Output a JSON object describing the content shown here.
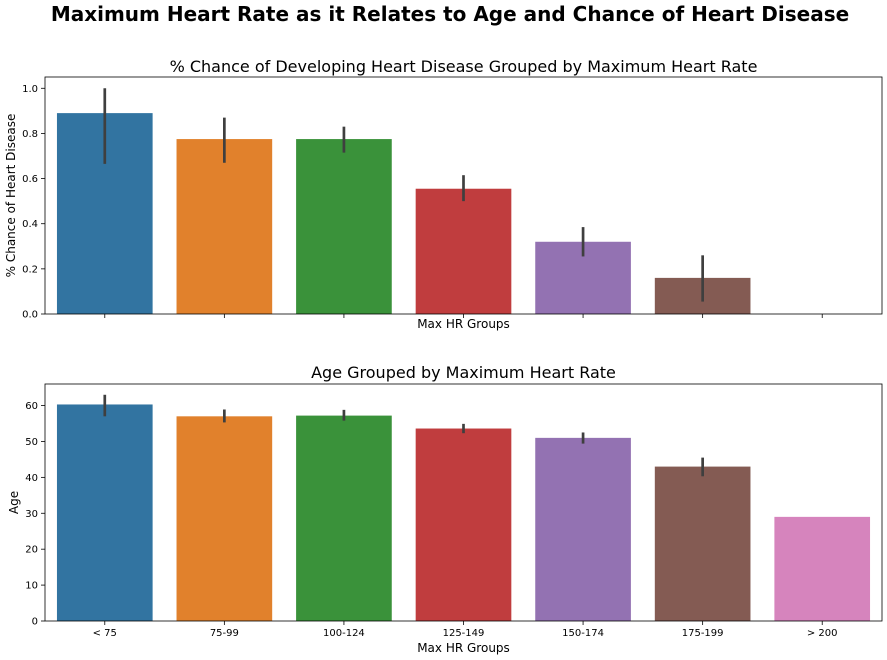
{
  "suptitle": "Maximum Heart Rate as it Relates to Age and Chance of Heart Disease",
  "chart_data": [
    {
      "type": "bar",
      "title": "% Chance of Developing Heart Disease Grouped by Maximum Heart Rate",
      "xlabel": "Max HR Groups",
      "ylabel": "% Chance of Heart Disease",
      "categories": [
        "< 75",
        "75-99",
        "100-124",
        "125-149",
        "150-174",
        "175-199",
        "> 200"
      ],
      "values": [
        0.89,
        0.775,
        0.775,
        0.555,
        0.32,
        0.16,
        0
      ],
      "error_low": [
        0.665,
        0.67,
        0.715,
        0.5,
        0.255,
        0.055,
        null
      ],
      "error_high": [
        1.0,
        0.87,
        0.83,
        0.615,
        0.385,
        0.26,
        null
      ],
      "ylim": [
        0,
        1.05
      ],
      "yticks": [
        0.0,
        0.2,
        0.4,
        0.6,
        0.8,
        1.0
      ],
      "ytick_labels": [
        "0.0",
        "0.2",
        "0.4",
        "0.6",
        "0.8",
        "1.0"
      ],
      "show_xtick_labels": false,
      "grid": false
    },
    {
      "type": "bar",
      "title": "Age Grouped by Maximum Heart Rate",
      "xlabel": "Max HR Groups",
      "ylabel": "Age",
      "categories": [
        "< 75",
        "75-99",
        "100-124",
        "125-149",
        "150-174",
        "175-199",
        "> 200"
      ],
      "values": [
        60.3,
        57.0,
        57.2,
        53.6,
        51.0,
        43.0,
        29.0
      ],
      "error_low": [
        57.0,
        55.3,
        55.8,
        52.3,
        49.4,
        40.3,
        null
      ],
      "error_high": [
        63.0,
        58.9,
        58.8,
        54.9,
        52.5,
        45.5,
        null
      ],
      "ylim": [
        0,
        66
      ],
      "yticks": [
        0,
        10,
        20,
        30,
        40,
        50,
        60
      ],
      "ytick_labels": [
        "0",
        "10",
        "20",
        "30",
        "40",
        "50",
        "60"
      ],
      "show_xtick_labels": true,
      "grid": false
    }
  ],
  "colors": [
    "#3274a1",
    "#e1812c",
    "#3a923a",
    "#c03d3e",
    "#9372b2",
    "#845b53",
    "#d684bd"
  ],
  "errorbar_color": "#3f3f3f"
}
